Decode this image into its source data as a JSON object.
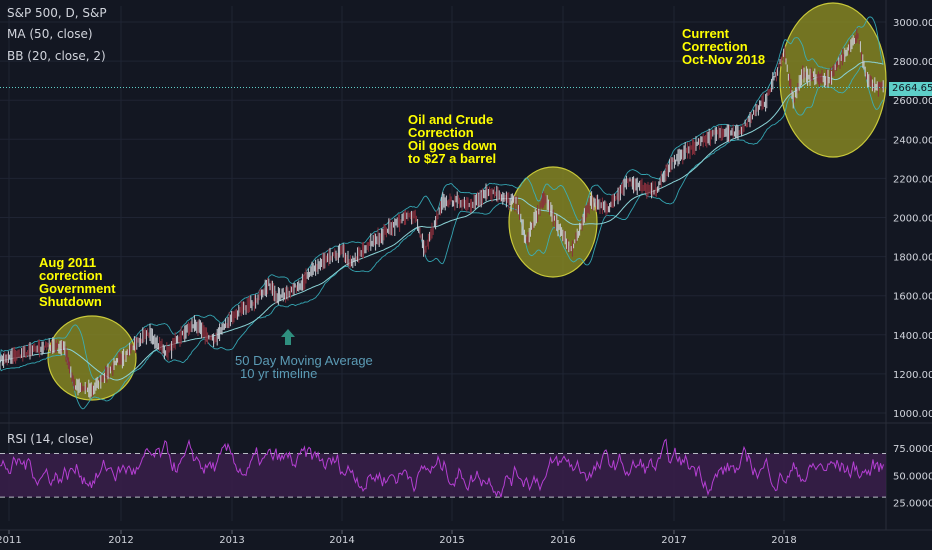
{
  "header": {
    "symbol_line": "S&P 500, D, S&P",
    "ma_line": "MA (50, close)",
    "bb_line": "BB (20, close, 2)",
    "rsi_line": "RSI (14, close)"
  },
  "last_price_label": "2664.65",
  "annotations": {
    "aug2011": [
      "Aug 2011",
      "correction",
      "Government",
      "Shutdown"
    ],
    "oil": [
      "Oil and Crude",
      "Correction",
      "Oil goes down",
      "to $27 a barrel"
    ],
    "current": [
      "Current",
      "Correction",
      "Oct-Nov 2018"
    ],
    "ma_note": [
      "50 Day Moving Average",
      "10 yr timeline"
    ]
  },
  "colors": {
    "background": "#131722",
    "price_line": "#9aa0a8",
    "bollinger": "#37b3c0",
    "moving_average": "#8bd3d6",
    "rsi_line": "#b43fd2",
    "rsi_band_fill": "#3a1f4a",
    "highlight_circle": "#8e8e23",
    "annotation_text": "#ffff00",
    "note_text": "#5b9bb5",
    "axis_text": "#d1d4dc"
  },
  "chart_data": [
    {
      "type": "line",
      "series": [
        {
          "x": [
            "2011-01",
            "2011-04",
            "2011-07",
            "2011-08",
            "2011-10",
            "2012-01",
            "2012-04",
            "2012-06",
            "2012-09",
            "2012-11",
            "2013-01",
            "2013-05",
            "2013-06",
            "2013-09",
            "2014-01",
            "2014-02",
            "2014-06",
            "2014-09",
            "2014-10",
            "2014-12",
            "2015-03",
            "2015-05",
            "2015-08",
            "2015-09",
            "2015-11",
            "2016-02",
            "2016-04",
            "2016-06",
            "2016-08",
            "2016-11",
            "2017-01",
            "2017-03",
            "2017-06",
            "2017-08",
            "2017-11",
            "2018-01",
            "2018-02",
            "2018-03",
            "2018-06",
            "2018-09",
            "2018-10",
            "2018-11"
          ],
          "values": [
            1270,
            1340,
            1330,
            1150,
            1110,
            1290,
            1400,
            1320,
            1450,
            1380,
            1480,
            1650,
            1580,
            1690,
            1840,
            1760,
            1950,
            2010,
            1840,
            2070,
            2080,
            2120,
            2090,
            1880,
            2090,
            1830,
            2080,
            2060,
            2180,
            2140,
            2280,
            2370,
            2430,
            2440,
            2590,
            2860,
            2590,
            2720,
            2720,
            2930,
            2720,
            2664.65
          ]
        }
      ],
      "ylim": [
        1000,
        3000
      ],
      "yticks": [
        "1000.00",
        "1200.00",
        "1400.00",
        "1600.00",
        "1800.00",
        "2000.00",
        "2200.00",
        "2400.00",
        "2600.00",
        "2800.00",
        "3000.00"
      ],
      "xticks": [
        "2011",
        "2012",
        "2013",
        "2014",
        "2015",
        "2016",
        "2017",
        "2018"
      ],
      "grid": true
    },
    {
      "type": "line",
      "ylim": [
        10,
        90
      ],
      "yticks": [
        "25.0000",
        "50.0000",
        "75.0000"
      ],
      "bands": [
        30,
        70
      ]
    }
  ]
}
